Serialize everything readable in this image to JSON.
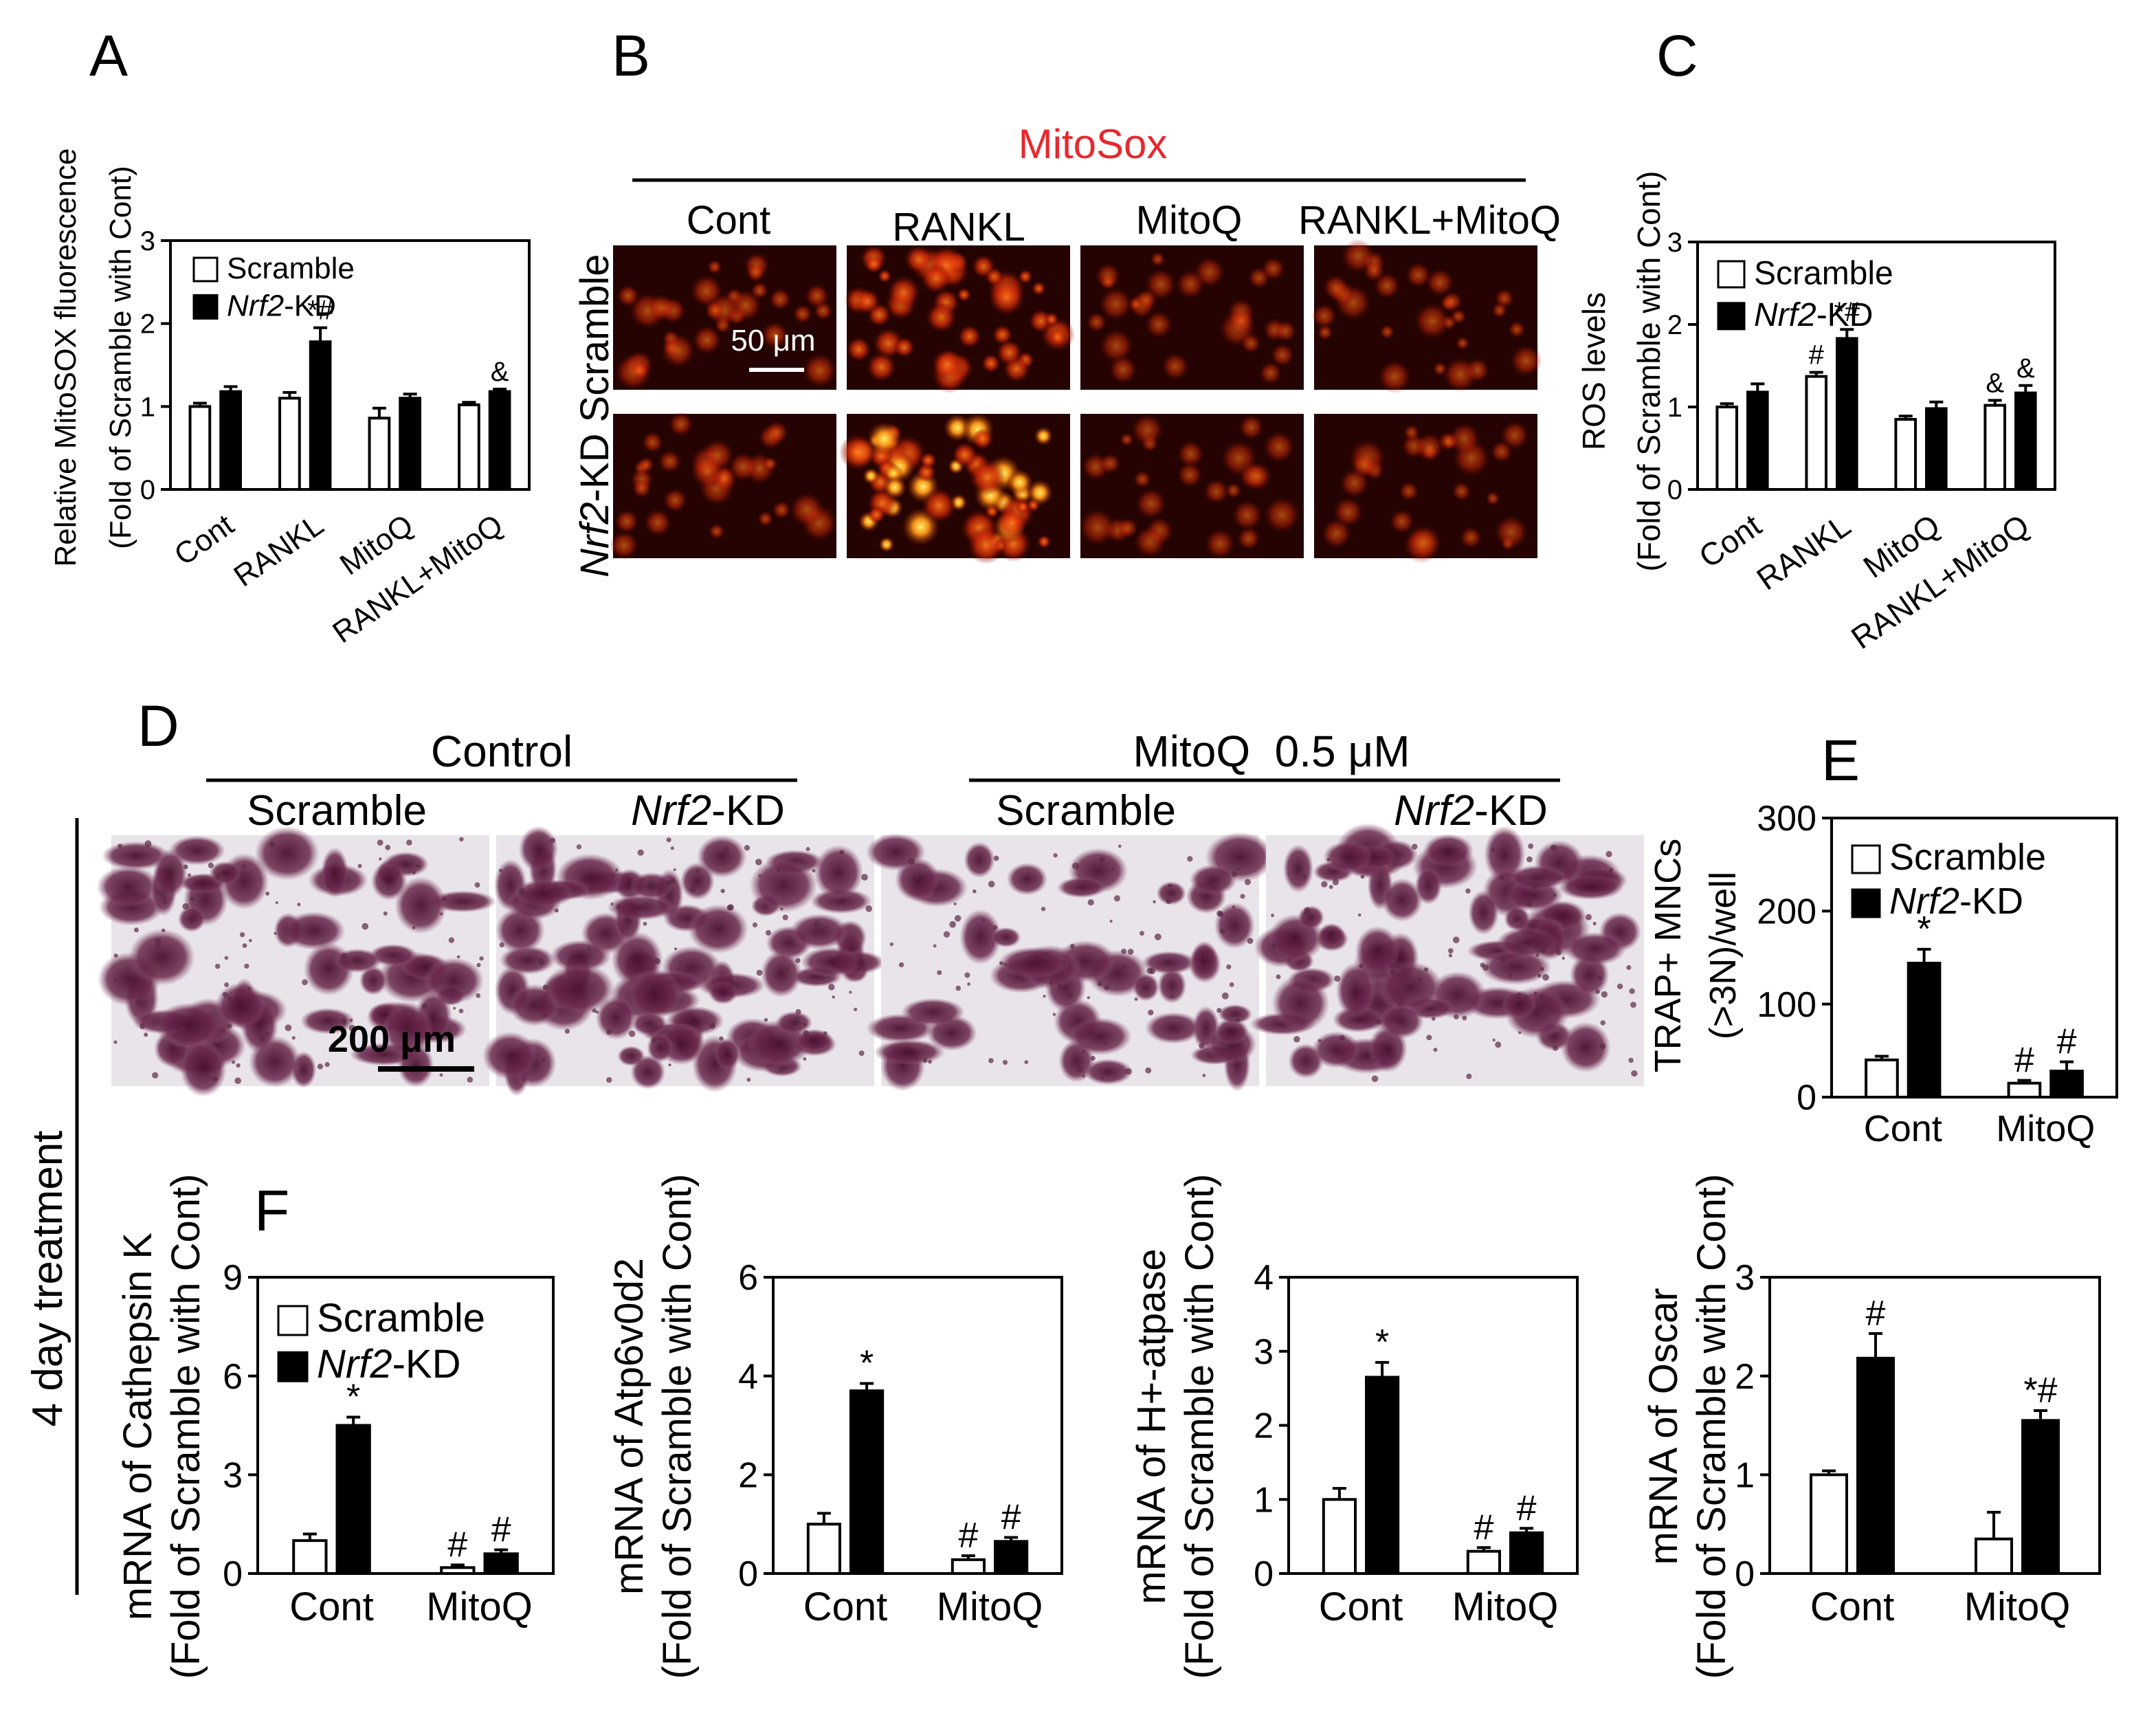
{
  "panel_letters": {
    "A": "A",
    "B": "B",
    "C": "C",
    "D": "D",
    "E": "E",
    "F": "F"
  },
  "legend": {
    "scramble": "Scramble",
    "nrf2_italic": "Nrf2",
    "nrf2_suffix": "-KD"
  },
  "panel_B": {
    "header": "MitoSox",
    "header_color": "#e8282e",
    "columns": [
      "Cont",
      "RANKL",
      "MitoQ",
      "RANKL+MitoQ"
    ],
    "row_label_nrf2_italic": "Nrf2",
    "row_label_rest": "-KD Scramble",
    "scale_bar": "50 μm"
  },
  "panel_D": {
    "group_control": "Control",
    "group_mitoq": "MitoQ  0.5 μM",
    "columns": [
      "Scramble",
      "Nrf2-KD",
      "Scramble",
      "Nrf2-KD"
    ],
    "scale_bar": "200 μm",
    "side_label": "4 day treatment"
  },
  "chart_data": [
    {
      "id": "A",
      "type": "bar",
      "categories": [
        "Cont",
        "RANKL",
        "MitoQ",
        "RANKL+MitoQ"
      ],
      "series": [
        {
          "name": "Scramble",
          "values": [
            1.0,
            1.1,
            0.86,
            1.02
          ],
          "errors": [
            0.04,
            0.07,
            0.12,
            0.03
          ]
        },
        {
          "name": "Nrf2-KD",
          "values": [
            1.18,
            1.78,
            1.1,
            1.18
          ],
          "errors": [
            0.06,
            0.17,
            0.05,
            0.03
          ]
        }
      ],
      "annotations": [
        {
          "series": 1,
          "category": 1,
          "text": "*#"
        },
        {
          "series": 1,
          "category": 3,
          "text": "&"
        }
      ],
      "ylabel_line1": "Relative MitoSOX fluorescence",
      "ylabel_line2": "(Fold of Scramble with Cont)",
      "ylim": [
        0,
        3
      ],
      "yticks": [
        "0",
        "1",
        "2",
        "3"
      ],
      "tick_rotation": "rotated",
      "legend_position": "top-left",
      "grid": false
    },
    {
      "id": "C",
      "type": "bar",
      "categories": [
        "Cont",
        "RANKL",
        "MitoQ",
        "RANKL+MitoQ"
      ],
      "series": [
        {
          "name": "Scramble",
          "values": [
            1.0,
            1.37,
            0.85,
            1.02
          ],
          "errors": [
            0.04,
            0.05,
            0.04,
            0.06
          ]
        },
        {
          "name": "Nrf2-KD",
          "values": [
            1.18,
            1.83,
            0.98,
            1.17
          ],
          "errors": [
            0.1,
            0.11,
            0.08,
            0.09
          ]
        }
      ],
      "annotations": [
        {
          "series": 0,
          "category": 1,
          "text": "#"
        },
        {
          "series": 1,
          "category": 1,
          "text": "*#"
        },
        {
          "series": 0,
          "category": 3,
          "text": "&"
        },
        {
          "series": 1,
          "category": 3,
          "text": "&"
        }
      ],
      "ylabel_line1": "ROS levels",
      "ylabel_line2": "(Fold of Scramble with Cont)",
      "ylim": [
        0,
        3
      ],
      "yticks": [
        "0",
        "1",
        "2",
        "3"
      ],
      "tick_rotation": "rotated",
      "legend_position": "top-left",
      "grid": false
    },
    {
      "id": "E",
      "type": "bar",
      "categories": [
        "Cont",
        "MitoQ"
      ],
      "series": [
        {
          "name": "Scramble",
          "values": [
            40,
            15
          ],
          "errors": [
            4,
            3
          ]
        },
        {
          "name": "Nrf2-KD",
          "values": [
            144,
            28
          ],
          "errors": [
            15,
            10
          ]
        }
      ],
      "annotations": [
        {
          "series": 1,
          "category": 0,
          "text": "*"
        },
        {
          "series": 0,
          "category": 1,
          "text": "#"
        },
        {
          "series": 1,
          "category": 1,
          "text": "#"
        }
      ],
      "ylabel_line1": "TRAP+ MNCs",
      "ylabel_line2": "(>3N)/well",
      "ylim": [
        0,
        300
      ],
      "yticks": [
        "0",
        "100",
        "200",
        "300"
      ],
      "tick_rotation": "horizontal",
      "legend_position": "top-left",
      "grid": false
    },
    {
      "id": "F1",
      "type": "bar",
      "categories": [
        "Cont",
        "MitoQ"
      ],
      "series": [
        {
          "name": "Scramble",
          "values": [
            1.0,
            0.18
          ],
          "errors": [
            0.2,
            0.08
          ]
        },
        {
          "name": "Nrf2-KD",
          "values": [
            4.5,
            0.6
          ],
          "errors": [
            0.25,
            0.12
          ]
        }
      ],
      "annotations": [
        {
          "series": 1,
          "category": 0,
          "text": "*"
        },
        {
          "series": 0,
          "category": 1,
          "text": "#"
        },
        {
          "series": 1,
          "category": 1,
          "text": "#"
        }
      ],
      "ylabel_line1": "mRNA of Cathepsin K",
      "ylabel_line2": "(Fold of Scramble with Cont)",
      "ylim": [
        0,
        9
      ],
      "yticks": [
        "0",
        "3",
        "6",
        "9"
      ],
      "tick_rotation": "horizontal",
      "legend_position": "top-left",
      "grid": false
    },
    {
      "id": "F2",
      "type": "bar",
      "categories": [
        "Cont",
        "MitoQ"
      ],
      "series": [
        {
          "name": "Scramble",
          "values": [
            1.0,
            0.28
          ],
          "errors": [
            0.22,
            0.08
          ]
        },
        {
          "name": "Nrf2-KD",
          "values": [
            3.7,
            0.65
          ],
          "errors": [
            0.15,
            0.08
          ]
        }
      ],
      "annotations": [
        {
          "series": 1,
          "category": 0,
          "text": "*"
        },
        {
          "series": 0,
          "category": 1,
          "text": "#"
        },
        {
          "series": 1,
          "category": 1,
          "text": "#"
        }
      ],
      "ylabel_line1": "mRNA of Atp6v0d2",
      "ylabel_line2": "(Fold of Scramble with Cont)",
      "ylim": [
        0,
        6
      ],
      "yticks": [
        "0",
        "2",
        "4",
        "6"
      ],
      "tick_rotation": "horizontal",
      "grid": false
    },
    {
      "id": "F3",
      "type": "bar",
      "categories": [
        "Cont",
        "MitoQ"
      ],
      "series": [
        {
          "name": "Scramble",
          "values": [
            1.0,
            0.3
          ],
          "errors": [
            0.15,
            0.05
          ]
        },
        {
          "name": "Nrf2-KD",
          "values": [
            2.65,
            0.55
          ],
          "errors": [
            0.2,
            0.06
          ]
        }
      ],
      "annotations": [
        {
          "series": 1,
          "category": 0,
          "text": "*"
        },
        {
          "series": 0,
          "category": 1,
          "text": "#"
        },
        {
          "series": 1,
          "category": 1,
          "text": "#"
        }
      ],
      "ylabel_line1": "mRNA of H+-atpase",
      "ylabel_line2": "(Fold of Scramble with Cont)",
      "ylim": [
        0,
        4
      ],
      "yticks": [
        "0",
        "1",
        "2",
        "3",
        "4"
      ],
      "tick_rotation": "horizontal",
      "grid": false
    },
    {
      "id": "F4",
      "type": "bar",
      "categories": [
        "Cont",
        "MitoQ"
      ],
      "series": [
        {
          "name": "Scramble",
          "values": [
            1.0,
            0.35
          ],
          "errors": [
            0.04,
            0.27
          ]
        },
        {
          "name": "Nrf2-KD",
          "values": [
            2.18,
            1.55
          ],
          "errors": [
            0.25,
            0.1
          ]
        }
      ],
      "annotations": [
        {
          "series": 1,
          "category": 0,
          "text": "#"
        },
        {
          "series": 1,
          "category": 1,
          "text": "*#"
        }
      ],
      "ylabel_line1": "mRNA of Oscar",
      "ylabel_line2": "(Fold of Scramble with Cont)",
      "ylim": [
        0,
        3
      ],
      "yticks": [
        "0",
        "1",
        "2",
        "3"
      ],
      "tick_rotation": "horizontal",
      "grid": false
    }
  ]
}
